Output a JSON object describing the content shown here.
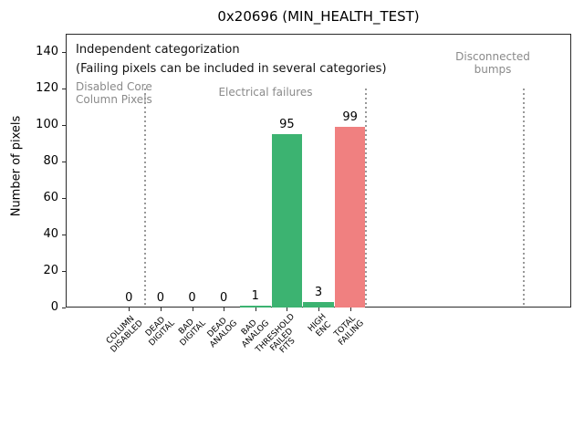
{
  "chart_data": {
    "type": "bar",
    "title": "0x20696 (MIN_HEALTH_TEST)",
    "xlabel": "",
    "ylabel": "Number of pixels",
    "ylim": [
      0,
      150
    ],
    "yticks": [
      0,
      20,
      40,
      60,
      80,
      100,
      120,
      140
    ],
    "xlim_categories": [
      -2,
      14
    ],
    "grid": false,
    "legend": null,
    "categories": [
      "COLUMN\nDISABLED",
      "DEAD\nDIGITAL",
      "BAD\nDIGITAL",
      "DEAD\nANALOG",
      "BAD\nANALOG",
      "THRESHOLD\nFAILED\nFITS",
      "HIGH\nENC",
      "TOTAL\nFAILING"
    ],
    "values": [
      0,
      0,
      0,
      0,
      1,
      95,
      3,
      99
    ],
    "bar_colors": [
      "#3cb371",
      "#3cb371",
      "#3cb371",
      "#3cb371",
      "#3cb371",
      "#3cb371",
      "#3cb371",
      "#f08080"
    ],
    "annotations": [
      {
        "text": "Independent categorization",
        "color": "#111111"
      },
      {
        "text": "(Failing pixels can be included in several categories)",
        "color": "#111111"
      }
    ],
    "category_groups": [
      {
        "label": "Disabled Core\nColumn Pixels",
        "color": "#8a8a8a"
      },
      {
        "label": "Electrical failures",
        "color": "#8a8a8a"
      },
      {
        "label": "Disconnected\nbumps",
        "color": "#8a8a8a"
      }
    ],
    "separators": {
      "x_positions": [
        0.5,
        7.5,
        12.5
      ],
      "ymax": 120,
      "style": "dotted",
      "color": "#999999"
    },
    "colors": {
      "pass_bar": "#3cb371",
      "fail_bar": "#f08080",
      "group_text": "#8a8a8a",
      "axis": "#2a2a2a"
    }
  }
}
